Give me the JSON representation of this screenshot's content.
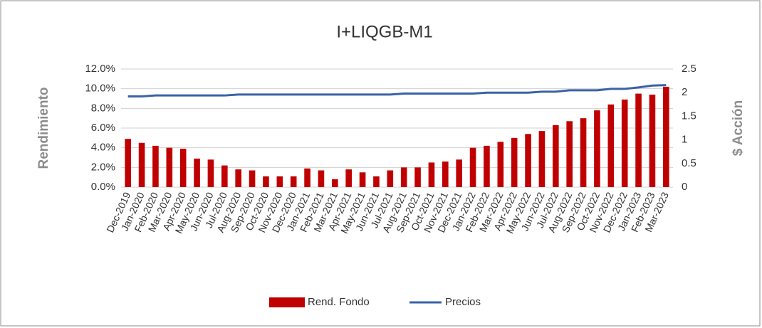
{
  "chart_data": {
    "type": "bar",
    "title": "I+LIQGB-M1",
    "ylabel": "Rendimiento",
    "y2label": "$ Acción",
    "categories": [
      "Dec-2019",
      "Jan-2020",
      "Feb-2020",
      "Mar-2020",
      "Apr-2020",
      "May-2020",
      "Jun-2020",
      "Jul-2020",
      "Aug-2020",
      "Sep-2020",
      "Oct-2020",
      "Nov-2020",
      "Dec-2020",
      "Jan-2021",
      "Feb-2021",
      "Mar-2021",
      "Apr-2021",
      "May-2021",
      "Jun-2021",
      "Jul-2021",
      "Aug-2021",
      "Sep-2021",
      "Oct-2021",
      "Nov-2021",
      "Dec-2021",
      "Jan-2022",
      "Feb-2022",
      "Mar-2022",
      "Apr-2022",
      "May-2022",
      "Jun-2022",
      "Jul-2022",
      "Aug-2022",
      "Sep-2022",
      "Oct-2022",
      "Nov-2022",
      "Dec-2022",
      "Jan-2023",
      "Feb-2023",
      "Mar-2023"
    ],
    "series": [
      {
        "name": "Rend. Fondo",
        "type": "bar",
        "color": "#c00000",
        "values": [
          4.9,
          4.5,
          4.2,
          4.0,
          3.9,
          2.9,
          2.8,
          2.2,
          1.8,
          1.7,
          1.1,
          1.1,
          1.1,
          1.9,
          1.7,
          0.8,
          1.8,
          1.5,
          1.1,
          1.7,
          2.0,
          2.0,
          2.5,
          2.6,
          2.8,
          4.0,
          4.2,
          4.6,
          5.0,
          5.4,
          5.7,
          6.3,
          6.7,
          7.0,
          7.8,
          8.4,
          8.9,
          9.5,
          9.4,
          10.2
        ]
      },
      {
        "name": "Precios",
        "type": "line",
        "axis": "y2",
        "color": "#3a62a7",
        "values": [
          1.92,
          1.92,
          1.94,
          1.94,
          1.94,
          1.94,
          1.94,
          1.94,
          1.96,
          1.96,
          1.96,
          1.96,
          1.96,
          1.96,
          1.96,
          1.96,
          1.96,
          1.96,
          1.96,
          1.96,
          1.98,
          1.98,
          1.98,
          1.98,
          1.98,
          1.98,
          2.0,
          2.0,
          2.0,
          2.0,
          2.02,
          2.02,
          2.05,
          2.05,
          2.05,
          2.08,
          2.08,
          2.11,
          2.15,
          2.16
        ]
      }
    ],
    "ylim": [
      0,
      12
    ],
    "yticks": [
      {
        "value": 0,
        "label": "0.0%"
      },
      {
        "value": 2,
        "label": "2.0%"
      },
      {
        "value": 4,
        "label": "4.0%"
      },
      {
        "value": 6,
        "label": "6.0%"
      },
      {
        "value": 8,
        "label": "8.0%"
      },
      {
        "value": 10,
        "label": "10.0%"
      },
      {
        "value": 12,
        "label": "12.0%"
      }
    ],
    "y2lim": [
      0,
      2.5
    ],
    "y2ticks": [
      0,
      0.5,
      1,
      1.5,
      2,
      2.5
    ],
    "grid": true,
    "legend": "bottom"
  }
}
